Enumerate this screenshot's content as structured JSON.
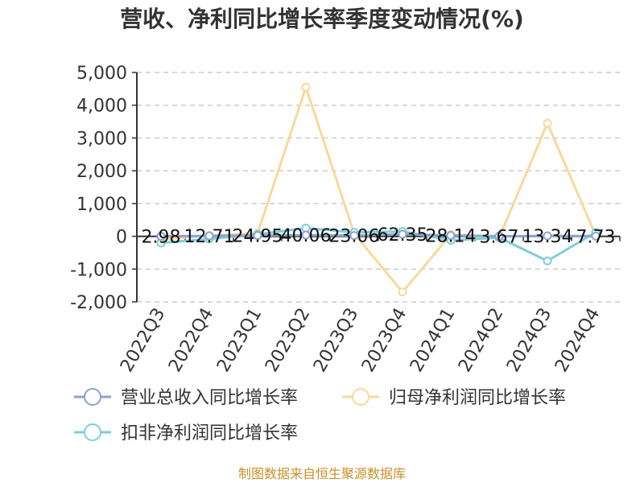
{
  "chart_data": {
    "type": "line",
    "title": "营收、净利同比增长率季度变动情况(%)",
    "categories": [
      "2022Q3",
      "2022Q4",
      "2023Q1",
      "2023Q2",
      "2023Q3",
      "2023Q4",
      "2024Q1",
      "2024Q2",
      "2024Q3",
      "2024Q4"
    ],
    "ylim": [
      -2000,
      5000
    ],
    "yticks": [
      5000,
      4000,
      3000,
      2000,
      1000,
      0,
      -1000,
      -2000
    ],
    "ytick_labels": [
      "5,000",
      "4,000",
      "3,000",
      "2,000",
      "1,000",
      "0",
      "-1,000",
      "-2,000"
    ],
    "grid": true,
    "legend_position": "bottom",
    "series": [
      {
        "name": "营业总收入同比增长率",
        "color": "#8da2cf",
        "values": [
          2.98,
          12.71,
          24.95,
          40.06,
          23.06,
          62.35,
          28.14,
          3.67,
          13.34,
          7.73
        ],
        "data_labels": [
          "2.98",
          "12.71",
          "24.95",
          "40.06",
          "23.06",
          "62.35",
          "28.14",
          "3.67",
          "13.34",
          "7.73"
        ]
      },
      {
        "name": "归母净利润同比增长率",
        "color": "#f9d89a",
        "values": [
          -100,
          30,
          90,
          4550,
          80,
          -1700,
          50,
          -50,
          3450,
          30
        ]
      },
      {
        "name": "扣非净利润同比增长率",
        "color": "#7dcfd8",
        "values": [
          -200,
          -80,
          60,
          250,
          120,
          150,
          -120,
          -40,
          -750,
          120
        ]
      }
    ]
  },
  "footer": {
    "source": "制图数据来自恒生聚源数据库"
  }
}
